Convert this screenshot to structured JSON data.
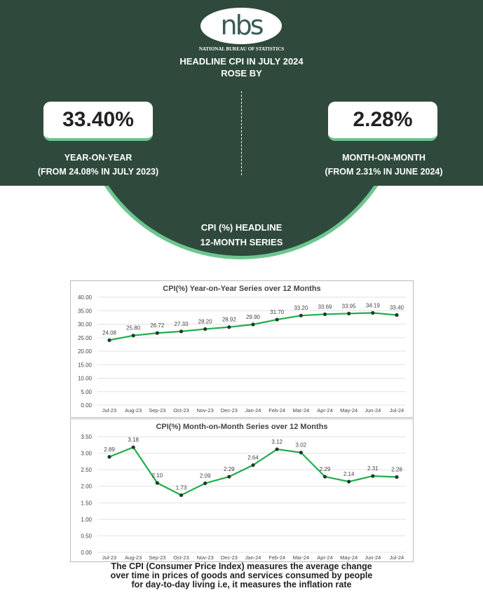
{
  "header": {
    "logo_text": "nbs",
    "org_name": "NATIONAL BUREAU OF STATISTICS",
    "title_line1": "HEADLINE CPI IN JULY 2024",
    "title_line2": "ROSE BY"
  },
  "yoy": {
    "value": "33.40%",
    "label": "YEAR-ON-YEAR",
    "sub": "(FROM 24.08% IN JULY 2023)"
  },
  "mom": {
    "value": "2.28%",
    "label": "MONTH-ON-MONTH",
    "sub": "(FROM 2.31% IN JUNE 2024)"
  },
  "circle": {
    "line1": "CPI (%)  HEADLINE",
    "line2": "12-MONTH SERIES"
  },
  "colors": {
    "dark_green": "#2f4a3c",
    "accent_green": "#6cc68f",
    "line_green": "#1fae4b"
  },
  "chart_data": [
    {
      "type": "line",
      "title": "CPI(%) Year-on-Year Series over 12 Months",
      "categories": [
        "Jul-23",
        "Aug-23",
        "Sep-23",
        "Oct-23",
        "Nov-23",
        "Dec-23",
        "Jan-24",
        "Feb-24",
        "Mar-24",
        "Apr-24",
        "May-24",
        "Jun-24",
        "Jul-24"
      ],
      "values": [
        24.08,
        25.8,
        26.72,
        27.33,
        28.2,
        28.92,
        29.9,
        31.7,
        33.2,
        33.69,
        33.95,
        34.19,
        33.4
      ],
      "labels": [
        "24.08",
        "25.80",
        "26.72",
        "27.33",
        "28.20",
        "28.92",
        "29.90",
        "31.70",
        "33.20",
        "33.69",
        "33.95",
        "34.19",
        "33.40"
      ],
      "yticks": [
        "0.00",
        "5.00",
        "10.00",
        "15.00",
        "20.00",
        "25.00",
        "30.00",
        "35.00",
        "40.00"
      ],
      "ylim": [
        0,
        40
      ],
      "grid": true
    },
    {
      "type": "line",
      "title": "CPI(%) Month-on-Month Series over 12 Months",
      "categories": [
        "Jul-23",
        "Aug-23",
        "Sep-23",
        "Oct-23",
        "Nov-23",
        "Dec-23",
        "Jan-24",
        "Feb-24",
        "Mar-24",
        "Apr-24",
        "May-24",
        "Jun-24",
        "Jul-24"
      ],
      "values": [
        2.89,
        3.18,
        2.1,
        1.73,
        2.09,
        2.29,
        2.64,
        3.12,
        3.02,
        2.29,
        2.14,
        2.31,
        2.28
      ],
      "labels": [
        "2.89",
        "3.18",
        "2.10",
        "1.73",
        "2.09",
        "2.29",
        "2.64",
        "3.12",
        "3.02",
        "2.29",
        "2.14",
        "2.31",
        "2.28"
      ],
      "yticks": [
        "0.00",
        "0.50",
        "1.00",
        "1.50",
        "2.00",
        "2.50",
        "3.00",
        "3.50"
      ],
      "ylim": [
        0,
        3.5
      ],
      "grid": true
    }
  ],
  "footer": {
    "line1": "The CPI (Consumer Price Index) measures the average change",
    "line2": "over time in prices of goods and services consumed by people",
    "line3": "for day-to-day living i.e, it measures the inflation rate"
  }
}
